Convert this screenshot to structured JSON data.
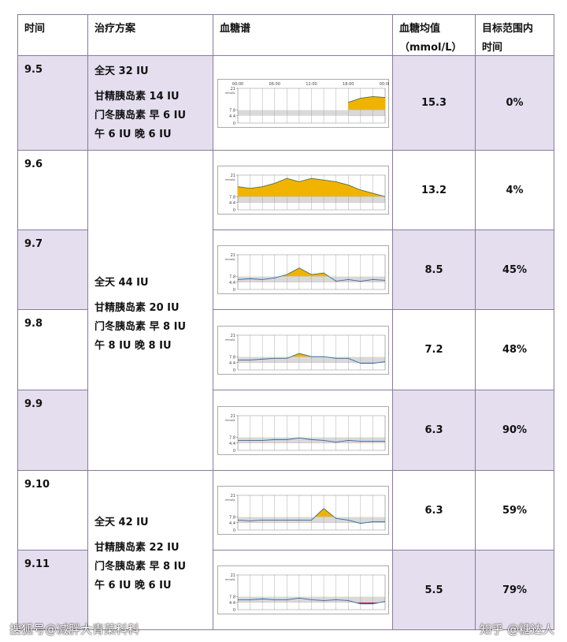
{
  "header": {
    "cells": [
      [
        "时间"
      ],
      [
        "治疗方案"
      ],
      [
        "血糖谱"
      ],
      [
        "血糖均值",
        "（mmol/L）"
      ],
      [
        "目标范围内",
        "时间"
      ]
    ]
  },
  "sparkline": {
    "ylabel": "mmol/L",
    "yticks": [
      0,
      4.4,
      7.8,
      21
    ],
    "ylim": [
      0,
      21
    ],
    "times": [
      "00:00",
      "06:00",
      "12:00",
      "18:00",
      "00:00"
    ]
  },
  "treatments": [
    {
      "lines": [
        "全天 32 IU",
        "甘精胰岛素 14 IU",
        "门冬胰岛素 早 6 IU",
        "午 6 IU 晚 6 IU"
      ]
    },
    {
      "lines": [
        "全天 44 IU",
        "甘精胰岛素 20 IU",
        "门冬胰岛素 早 8 IU",
        "午 8 IU 晚 8 IU"
      ]
    },
    {
      "lines": [
        "全天 42 IU",
        "甘精胰岛素 22 IU",
        "门冬胰岛素 早 8 IU",
        "午 6 IU 晚 6 IU"
      ]
    }
  ],
  "rows": [
    {
      "date": "9.5",
      "mean": "15.3",
      "tir": "0%",
      "curve": [
        null,
        null,
        null,
        null,
        null,
        null,
        null,
        null,
        null,
        12.5,
        15,
        16,
        15.5
      ]
    },
    {
      "date": "9.6",
      "mean": "13.2",
      "tir": "4%",
      "curve": [
        14,
        13,
        14,
        16,
        19,
        17,
        19,
        18,
        17,
        15,
        12,
        10,
        8
      ]
    },
    {
      "date": "9.7",
      "mean": "8.5",
      "tir": "45%",
      "curve": [
        6,
        6.5,
        6,
        7,
        9,
        13,
        9,
        10,
        5,
        6,
        5,
        6,
        5.5
      ]
    },
    {
      "date": "9.8",
      "mean": "7.2",
      "tir": "48%",
      "curve": [
        6,
        6,
        6.5,
        7,
        7,
        10,
        8,
        8,
        7,
        7,
        4,
        4,
        5
      ]
    },
    {
      "date": "9.9",
      "mean": "6.3",
      "tir": "90%",
      "curve": [
        6,
        6,
        6,
        6.5,
        6.5,
        7.5,
        6.5,
        6,
        5,
        6,
        5.5,
        5.5,
        5.5
      ]
    },
    {
      "date": "9.10",
      "mean": "6.3",
      "tir": "59%",
      "curve": [
        6,
        5.5,
        6,
        6,
        6,
        6,
        6,
        13,
        7,
        6,
        4,
        5,
        5
      ]
    },
    {
      "date": "9.11",
      "mean": "5.5",
      "tir": "79%",
      "curve": [
        6,
        6,
        6.5,
        6,
        6,
        7,
        6,
        5.5,
        6,
        5.5,
        3.5,
        3.5,
        5
      ]
    }
  ],
  "watermarks": [
    "搜狐号@减胖大青菜科科",
    "知乎 @糖达人"
  ]
}
